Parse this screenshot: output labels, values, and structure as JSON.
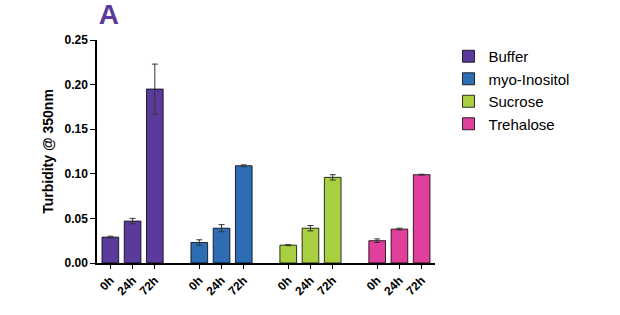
{
  "chart_data": {
    "type": "bar",
    "title": "A",
    "y_label": "Turbidity @ 350nm",
    "categories": [
      "0h",
      "24h",
      "72h"
    ],
    "series": [
      {
        "name": "Buffer",
        "color": "#5a3a9a",
        "values": [
          0.029,
          0.047,
          0.195
        ],
        "errors": [
          0.001,
          0.003,
          0.028
        ]
      },
      {
        "name": "myo-Inositol",
        "color": "#2e6db4",
        "values": [
          0.023,
          0.039,
          0.109
        ],
        "errors": [
          0.003,
          0.004,
          0.001
        ]
      },
      {
        "name": "Sucrose",
        "color": "#a8cf3f",
        "values": [
          0.02,
          0.039,
          0.096
        ],
        "errors": [
          0.0005,
          0.003,
          0.003
        ]
      },
      {
        "name": "Trehalose",
        "color": "#e0409b",
        "values": [
          0.025,
          0.038,
          0.099
        ],
        "errors": [
          0.002,
          0.001,
          0.0005
        ]
      }
    ],
    "ylim": [
      0,
      0.25
    ],
    "yticks": [
      {
        "value": 0,
        "label": "0.00"
      },
      {
        "value": 0.05,
        "label": "0.05"
      },
      {
        "value": 0.1,
        "label": "0.10"
      },
      {
        "value": 0.15,
        "label": "0.15"
      },
      {
        "value": 0.2,
        "label": "0.20"
      },
      {
        "value": 0.25,
        "label": "0.25"
      }
    ],
    "grid": false,
    "legend": "top right"
  }
}
